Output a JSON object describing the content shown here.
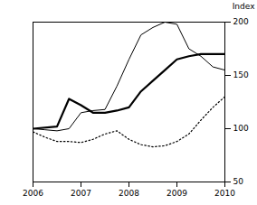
{
  "chart_data": {
    "type": "line",
    "ylabel": "Index",
    "y2label": "Index",
    "xlim": [
      2006,
      2010
    ],
    "xticks": [
      2006,
      2007,
      2008,
      2009,
      2010
    ],
    "ylim": [
      50,
      200
    ],
    "yticks": [
      50,
      100,
      150,
      200
    ],
    "y2lim": [
      50,
      200
    ],
    "y2ticks": [
      50,
      100,
      150,
      200
    ],
    "grid": false,
    "series": [
      {
        "color": "black",
        "line_style": "solid",
        "x": [
          2006.0,
          2006.5,
          2006.75,
          2007.0,
          2007.25,
          2007.5,
          2007.75,
          2008.0,
          2008.25,
          2008.5,
          2008.75,
          2009.0,
          2009.25,
          2009.5,
          2009.75,
          2010.0
        ],
        "values": [
          100,
          102,
          128,
          122,
          115,
          115,
          117,
          120,
          135,
          145,
          155,
          165,
          168,
          170,
          170,
          170
        ]
      },
      {
        "color": "black",
        "line_style": "solid",
        "x": [
          2006.0,
          2006.25,
          2006.5,
          2006.75,
          2007.0,
          2007.25,
          2007.5,
          2007.75,
          2008.0,
          2008.25,
          2008.5,
          2008.75,
          2009.0,
          2009.25,
          2009.5,
          2009.75,
          2010.0
        ],
        "values": [
          100,
          99,
          98,
          100,
          115,
          117,
          118,
          140,
          165,
          188,
          195,
          200,
          198,
          175,
          168,
          158,
          155
        ]
      },
      {
        "color": "black",
        "line_style": "dotted",
        "x": [
          2006.0,
          2006.25,
          2006.5,
          2006.75,
          2007.0,
          2007.25,
          2007.5,
          2007.75,
          2008.0,
          2008.25,
          2008.5,
          2008.75,
          2009.0,
          2009.25,
          2009.5,
          2009.75,
          2010.0
        ],
        "values": [
          97,
          92,
          88,
          88,
          87,
          90,
          95,
          98,
          90,
          85,
          83,
          84,
          88,
          95,
          108,
          120,
          130
        ]
      }
    ]
  }
}
